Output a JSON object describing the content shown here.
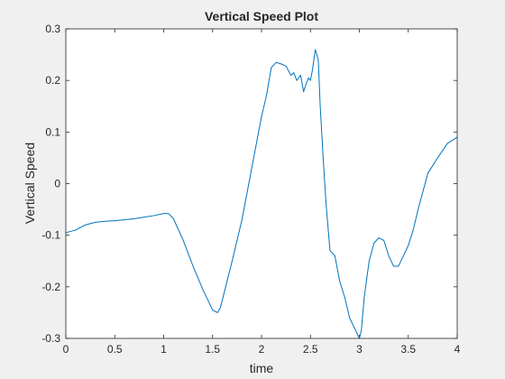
{
  "chart_data": {
    "type": "line",
    "title": "Vertical Speed Plot",
    "xlabel": "time",
    "ylabel": "Vertical Speed",
    "xlim": [
      0,
      4
    ],
    "ylim": [
      -0.3,
      0.3
    ],
    "x_ticks": [
      0,
      0.5,
      1,
      1.5,
      2,
      2.5,
      3,
      3.5,
      4
    ],
    "x_tick_labels": [
      "0",
      "0.5",
      "1",
      "1.5",
      "2",
      "2.5",
      "3",
      "3.5",
      "4"
    ],
    "y_ticks": [
      -0.3,
      -0.2,
      -0.1,
      0,
      0.1,
      0.2,
      0.3
    ],
    "y_tick_labels": [
      "-0.3",
      "-0.2",
      "-0.1",
      "0",
      "0.1",
      "0.2",
      "0.3"
    ],
    "grid": false,
    "box": true,
    "legend": "none",
    "colors": {
      "line": "#0072bd",
      "axes": "#262626",
      "plot_background": "#ffffff",
      "figure_background": "#f0f0f0"
    },
    "series": [
      {
        "x": [
          0,
          0.1,
          0.2,
          0.3,
          0.4,
          0.5,
          0.6,
          0.7,
          0.8,
          0.9,
          1.0,
          1.05,
          1.1,
          1.2,
          1.3,
          1.4,
          1.5,
          1.55,
          1.58,
          1.7,
          1.8,
          1.9,
          2.0,
          2.05,
          2.1,
          2.15,
          2.2,
          2.25,
          2.3,
          2.33,
          2.36,
          2.4,
          2.43,
          2.45,
          2.48,
          2.5,
          2.52,
          2.55,
          2.58,
          2.6,
          2.63,
          2.66,
          2.7,
          2.75,
          2.8,
          2.85,
          2.9,
          2.95,
          3.0,
          3.02,
          3.05,
          3.1,
          3.15,
          3.2,
          3.25,
          3.3,
          3.35,
          3.4,
          3.45,
          3.5,
          3.55,
          3.6,
          3.7,
          3.8,
          3.9,
          4.0
        ],
        "y": [
          -0.095,
          -0.09,
          -0.08,
          -0.075,
          -0.073,
          -0.072,
          -0.07,
          -0.068,
          -0.065,
          -0.062,
          -0.058,
          -0.058,
          -0.068,
          -0.11,
          -0.16,
          -0.205,
          -0.245,
          -0.25,
          -0.24,
          -0.15,
          -0.07,
          0.03,
          0.13,
          0.17,
          0.225,
          0.235,
          0.232,
          0.228,
          0.21,
          0.215,
          0.2,
          0.21,
          0.178,
          0.19,
          0.205,
          0.2,
          0.22,
          0.26,
          0.24,
          0.15,
          0.05,
          -0.04,
          -0.13,
          -0.14,
          -0.19,
          -0.22,
          -0.26,
          -0.28,
          -0.3,
          -0.285,
          -0.22,
          -0.15,
          -0.115,
          -0.105,
          -0.11,
          -0.14,
          -0.16,
          -0.16,
          -0.14,
          -0.12,
          -0.09,
          -0.05,
          0.02,
          0.05,
          0.078,
          0.09
        ]
      }
    ]
  }
}
